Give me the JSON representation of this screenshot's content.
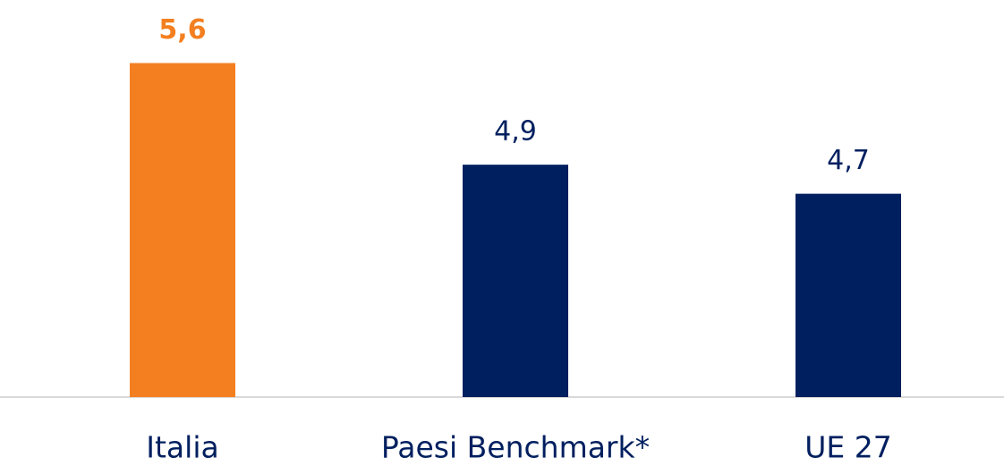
{
  "chart_data": {
    "type": "bar",
    "categories": [
      "Italia",
      "Paesi Benchmark*",
      "UE 27"
    ],
    "values": [
      5.6,
      4.9,
      4.7
    ],
    "value_labels": [
      "5,6",
      "4,9",
      "4,7"
    ],
    "colors": [
      "#f47f20",
      "#001f5f",
      "#001f5f"
    ],
    "ylim": [
      3.3,
      5.8
    ]
  }
}
